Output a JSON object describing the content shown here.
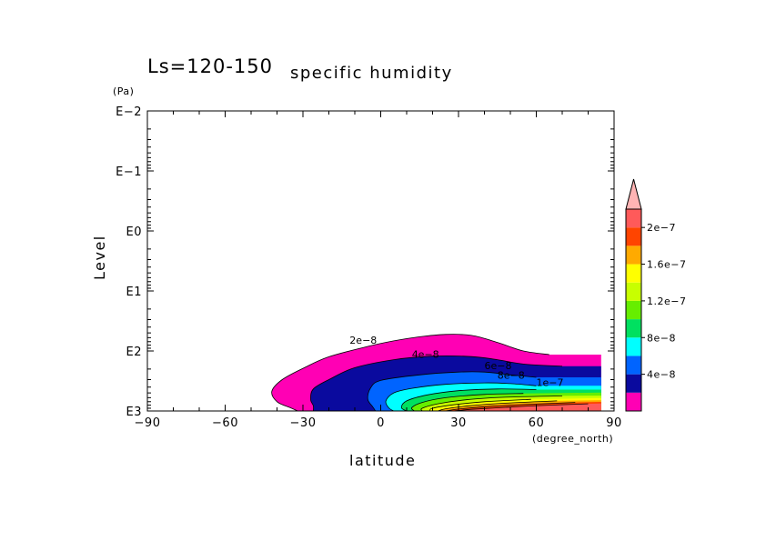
{
  "chart_data": {
    "type": "contour",
    "title": "Ls=120-150",
    "subtitle": "specific humidity",
    "xlabel": "latitude",
    "xunit": "(degree_north)",
    "ylabel": "Level",
    "yunit": "(Pa)",
    "xlim": [
      -90,
      90
    ],
    "ylim_pa": [
      1000,
      0.01
    ],
    "yscale": "log",
    "x_ticks": [
      -90,
      -60,
      -30,
      0,
      30,
      60,
      90
    ],
    "x_tick_labels": [
      "−90",
      "−60",
      "−30",
      "0",
      "30",
      "60",
      "90"
    ],
    "y_ticks": [
      0.01,
      0.1,
      1,
      10,
      100,
      1000
    ],
    "y_tick_labels": [
      "E−2",
      "E−1",
      "E0",
      "E1",
      "E2",
      "E3"
    ],
    "levels": [
      0,
      2e-08,
      4e-08,
      6e-08,
      8e-08,
      1e-07,
      1.2e-07,
      1.4e-07,
      1.6e-07,
      1.8e-07,
      2e-07,
      2.2e-07
    ],
    "fill_colors": [
      "#ffffff",
      "#ff00b4",
      "#0a0a9e",
      "#0064ff",
      "#00ffff",
      "#00e060",
      "#66ee00",
      "#c8ff00",
      "#ffff00",
      "#ffaa00",
      "#ff4400",
      "#ff5a5a",
      "#ffb4b4"
    ],
    "colorbar": {
      "tick_values": [
        4e-08,
        8e-08,
        1.2e-07,
        1.6e-07,
        2e-07
      ],
      "tick_labels": [
        "4e−8",
        "8e−8",
        "1.2e−7",
        "1.6e−7",
        "2e−7"
      ],
      "colors_bottom_to_top": [
        "#ff00b4",
        "#0a0a9e",
        "#0064ff",
        "#00ffff",
        "#00e060",
        "#66ee00",
        "#c8ff00",
        "#ffff00",
        "#ffaa00",
        "#ff4400",
        "#ff5a5a"
      ],
      "extend_color": "#ffb4b4"
    },
    "contour_labels": [
      "2e−8",
      "4e−8",
      "6e−8",
      "8e−8",
      "1e−7"
    ],
    "regions": [
      {
        "level": 2e-08,
        "boundary": [
          [
            -32,
            1000
          ],
          [
            -35,
            880
          ],
          [
            -40,
            700
          ],
          [
            -42,
            470
          ],
          [
            -38,
            300
          ],
          [
            -30,
            195
          ],
          [
            -20,
            125
          ],
          [
            -5,
            84
          ],
          [
            5,
            68
          ],
          [
            15,
            58
          ],
          [
            25,
            53
          ],
          [
            35,
            55
          ],
          [
            45,
            72
          ],
          [
            55,
            100
          ],
          [
            65,
            115
          ],
          [
            85,
            115
          ],
          [
            85,
            1000
          ]
        ]
      },
      {
        "level": 4e-08,
        "boundary": [
          [
            -26,
            1000
          ],
          [
            -26,
            820
          ],
          [
            -27,
            640
          ],
          [
            -26,
            430
          ],
          [
            -20,
            300
          ],
          [
            -10,
            190
          ],
          [
            5,
            140
          ],
          [
            20,
            122
          ],
          [
            35,
            124
          ],
          [
            45,
            140
          ],
          [
            55,
            165
          ],
          [
            70,
            180
          ],
          [
            85,
            180
          ],
          [
            85,
            1000
          ]
        ]
      },
      {
        "level": 6e-08,
        "boundary": [
          [
            -2,
            1000
          ],
          [
            -3,
            860
          ],
          [
            -5,
            640
          ],
          [
            -4,
            420
          ],
          [
            0,
            310
          ],
          [
            15,
            250
          ],
          [
            30,
            225
          ],
          [
            40,
            225
          ],
          [
            50,
            250
          ],
          [
            60,
            275
          ],
          [
            85,
            275
          ],
          [
            85,
            1000
          ]
        ]
      },
      {
        "level": 8e-08,
        "boundary": [
          [
            5,
            1000
          ],
          [
            3,
            880
          ],
          [
            2,
            680
          ],
          [
            5,
            500
          ],
          [
            12,
            420
          ],
          [
            25,
            360
          ],
          [
            40,
            340
          ],
          [
            50,
            350
          ],
          [
            60,
            380
          ],
          [
            85,
            380
          ],
          [
            85,
            1000
          ]
        ]
      },
      {
        "level": 1e-07,
        "boundary": [
          [
            10,
            1000
          ],
          [
            8,
            880
          ],
          [
            10,
            680
          ],
          [
            18,
            540
          ],
          [
            30,
            460
          ],
          [
            45,
            430
          ],
          [
            60,
            440
          ],
          [
            85,
            440
          ],
          [
            85,
            1000
          ]
        ]
      },
      {
        "level": 1.2e-07,
        "boundary": [
          [
            13,
            1000
          ],
          [
            12,
            880
          ],
          [
            16,
            720
          ],
          [
            25,
            600
          ],
          [
            40,
            530
          ],
          [
            55,
            510
          ],
          [
            85,
            495
          ],
          [
            85,
            1000
          ]
        ]
      },
      {
        "level": 1.4e-07,
        "boundary": [
          [
            16,
            1000
          ],
          [
            16,
            900
          ],
          [
            22,
            760
          ],
          [
            33,
            650
          ],
          [
            48,
            590
          ],
          [
            70,
            560
          ],
          [
            85,
            555
          ],
          [
            85,
            1000
          ]
        ]
      },
      {
        "level": 1.6e-07,
        "boundary": [
          [
            19,
            1000
          ],
          [
            20,
            900
          ],
          [
            28,
            790
          ],
          [
            40,
            700
          ],
          [
            58,
            640
          ],
          [
            85,
            610
          ],
          [
            85,
            1000
          ]
        ]
      },
      {
        "level": 1.8e-07,
        "boundary": [
          [
            22,
            1000
          ],
          [
            25,
            920
          ],
          [
            34,
            820
          ],
          [
            48,
            740
          ],
          [
            68,
            680
          ],
          [
            85,
            660
          ],
          [
            85,
            1000
          ]
        ]
      },
      {
        "level": 2e-07,
        "boundary": [
          [
            25,
            1000
          ],
          [
            30,
            930
          ],
          [
            40,
            850
          ],
          [
            55,
            780
          ],
          [
            75,
            720
          ],
          [
            85,
            705
          ],
          [
            85,
            1000
          ]
        ]
      },
      {
        "level": 2.2e-07,
        "boundary": [
          [
            28,
            1000
          ],
          [
            35,
            940
          ],
          [
            48,
            870
          ],
          [
            62,
            810
          ],
          [
            80,
            760
          ],
          [
            85,
            750
          ],
          [
            85,
            1000
          ]
        ]
      }
    ]
  }
}
